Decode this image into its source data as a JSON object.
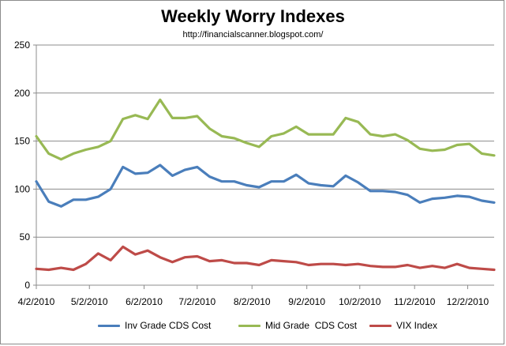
{
  "chart_data": {
    "type": "line",
    "title": "Weekly Worry Indexes",
    "subtitle": "http://financialscanner.blogspot.com/",
    "xlabel": "",
    "ylabel": "",
    "ylim": [
      0,
      250
    ],
    "y_ticks": [
      0,
      50,
      100,
      150,
      200,
      250
    ],
    "x_tick_labels": [
      "4/2/2010",
      "5/2/2010",
      "6/2/2010",
      "7/2/2010",
      "8/2/2010",
      "9/2/2010",
      "10/2/2010",
      "11/2/2010",
      "12/2/2010"
    ],
    "x_tick_weeks": [
      0,
      4.29,
      8.71,
      13.0,
      17.43,
      21.86,
      26.14,
      30.57,
      34.86
    ],
    "grid": "horizontal",
    "legend_position": "bottom",
    "series": [
      {
        "name": "Inv Grade CDS Cost",
        "color": "#4a7ebb",
        "values": [
          108,
          87,
          82,
          89,
          89,
          92,
          100,
          123,
          116,
          117,
          125,
          114,
          120,
          123,
          113,
          108,
          108,
          104,
          102,
          108,
          108,
          115,
          106,
          104,
          103,
          114,
          107,
          98,
          98,
          97,
          94,
          86,
          90,
          91,
          93,
          92,
          88,
          86
        ]
      },
      {
        "name": "Mid Grade  CDS Cost",
        "color": "#98b954",
        "values": [
          155,
          137,
          131,
          137,
          141,
          144,
          150,
          173,
          177,
          173,
          193,
          174,
          174,
          176,
          163,
          155,
          153,
          148,
          144,
          155,
          158,
          165,
          157,
          157,
          157,
          174,
          170,
          157,
          155,
          157,
          151,
          142,
          140,
          141,
          146,
          147,
          137,
          135
        ]
      },
      {
        "name": "VIX Index",
        "color": "#be4b48",
        "values": [
          17,
          16,
          18,
          16,
          22,
          33,
          26,
          40,
          32,
          36,
          29,
          24,
          29,
          30,
          25,
          26,
          23,
          23,
          21,
          26,
          25,
          24,
          21,
          22,
          22,
          21,
          22,
          20,
          19,
          19,
          21,
          18,
          20,
          18,
          22,
          18,
          17,
          16
        ]
      }
    ]
  }
}
